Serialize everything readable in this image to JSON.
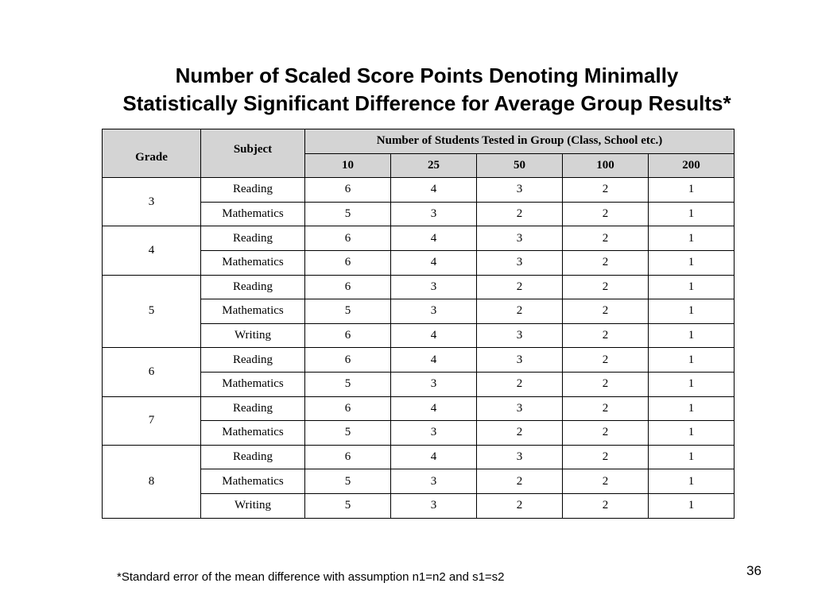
{
  "title": {
    "line1": "Number of Scaled Score Points Denoting Minimally",
    "line2": "Statistically Significant Difference for Average Group Results*"
  },
  "table": {
    "header": {
      "grade": "Grade",
      "subject": "Subject",
      "group": "Number of Students Tested in Group (Class, School etc.)",
      "sizes": [
        "10",
        "25",
        "50",
        "100",
        "200"
      ]
    },
    "groups": [
      {
        "grade": "3",
        "rows": [
          {
            "subject": "Reading",
            "values": [
              "6",
              "4",
              "3",
              "2",
              "1"
            ]
          },
          {
            "subject": "Mathematics",
            "values": [
              "5",
              "3",
              "2",
              "2",
              "1"
            ]
          }
        ]
      },
      {
        "grade": "4",
        "rows": [
          {
            "subject": "Reading",
            "values": [
              "6",
              "4",
              "3",
              "2",
              "1"
            ]
          },
          {
            "subject": "Mathematics",
            "values": [
              "6",
              "4",
              "3",
              "2",
              "1"
            ]
          }
        ]
      },
      {
        "grade": "5",
        "rows": [
          {
            "subject": "Reading",
            "values": [
              "6",
              "3",
              "2",
              "2",
              "1"
            ]
          },
          {
            "subject": "Mathematics",
            "values": [
              "5",
              "3",
              "2",
              "2",
              "1"
            ]
          },
          {
            "subject": "Writing",
            "values": [
              "6",
              "4",
              "3",
              "2",
              "1"
            ]
          }
        ]
      },
      {
        "grade": "6",
        "rows": [
          {
            "subject": "Reading",
            "values": [
              "6",
              "4",
              "3",
              "2",
              "1"
            ]
          },
          {
            "subject": "Mathematics",
            "values": [
              "5",
              "3",
              "2",
              "2",
              "1"
            ]
          }
        ]
      },
      {
        "grade": "7",
        "rows": [
          {
            "subject": "Reading",
            "values": [
              "6",
              "4",
              "3",
              "2",
              "1"
            ]
          },
          {
            "subject": "Mathematics",
            "values": [
              "5",
              "3",
              "2",
              "2",
              "1"
            ]
          }
        ]
      },
      {
        "grade": "8",
        "rows": [
          {
            "subject": "Reading",
            "values": [
              "6",
              "4",
              "3",
              "2",
              "1"
            ]
          },
          {
            "subject": "Mathematics",
            "values": [
              "5",
              "3",
              "2",
              "2",
              "1"
            ]
          },
          {
            "subject": "Writing",
            "values": [
              "5",
              "3",
              "2",
              "2",
              "1"
            ]
          }
        ]
      }
    ]
  },
  "footnote": "*Standard error of the mean difference with assumption n1=n2 and s1=s2",
  "page_number": "36",
  "colors": {
    "header_background": "#d4d4d4",
    "border": "#000000"
  }
}
